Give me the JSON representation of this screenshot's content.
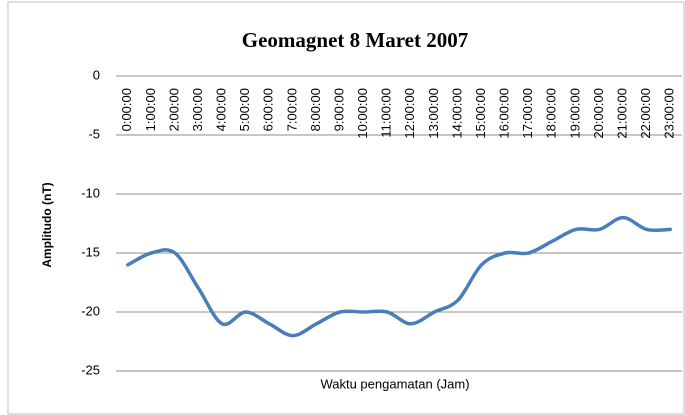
{
  "chart_data": {
    "type": "line",
    "title": "Geomagnet 8 Maret 2007",
    "x_label": "Waktu pengamatan (Jam)",
    "y_label": "Amplitudo (nT)",
    "categories": [
      "0:00:00",
      "1:00:00",
      "2:00:00",
      "3:00:00",
      "4:00:00",
      "5:00:00",
      "6:00:00",
      "7:00:00",
      "8:00:00",
      "9:00:00",
      "10:00:00",
      "11:00:00",
      "12:00:00",
      "13:00:00",
      "14:00:00",
      "15:00:00",
      "16:00:00",
      "17:00:00",
      "18:00:00",
      "19:00:00",
      "20:00:00",
      "21:00:00",
      "22:00:00",
      "23:00:00"
    ],
    "values": [
      -16,
      -15,
      -15,
      -18,
      -21,
      -20,
      -21,
      -22,
      -21,
      -20,
      -20,
      -20,
      -21,
      -20,
      -19,
      -16,
      -15,
      -15,
      -14,
      -13,
      -13,
      -12,
      -13,
      -13
    ],
    "color": "#4a7ebb",
    "smooth": true,
    "ylim": [
      -25,
      0
    ],
    "yticks": [
      0,
      -5,
      -10,
      -15,
      -20,
      -25
    ],
    "grid": true
  }
}
